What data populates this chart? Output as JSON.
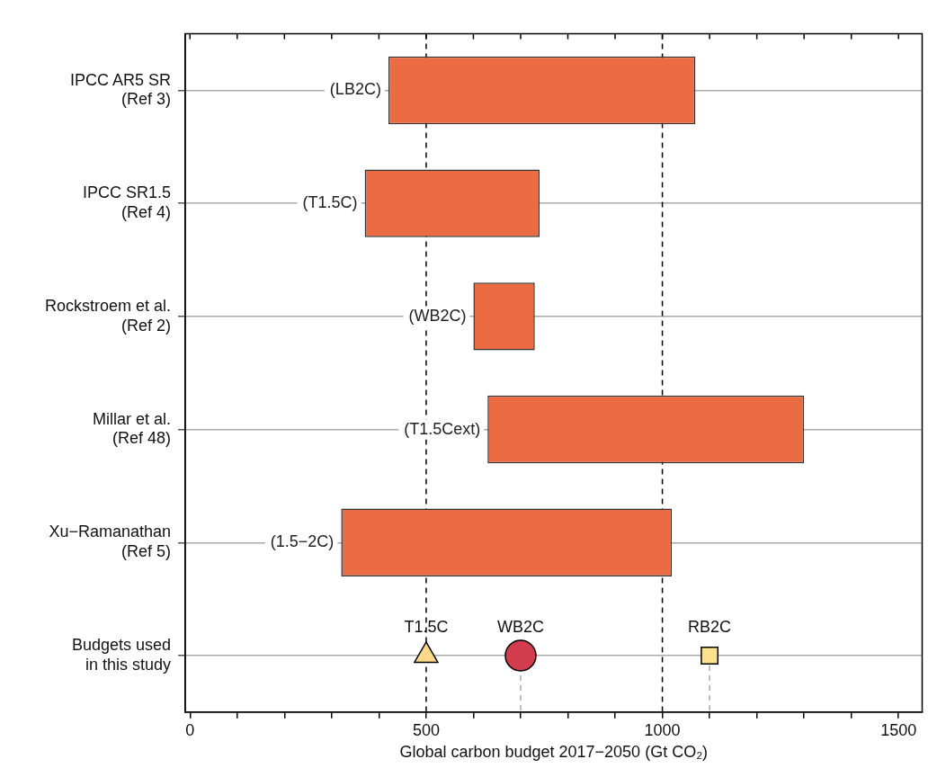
{
  "chart_data": {
    "type": "bar",
    "orientation": "horizontal",
    "xlabel": "Global carbon budget 2017−2050 (Gt CO₂)",
    "categories": [
      "IPCC AR5 SR\n(Ref 3)",
      "IPCC SR1.5\n(Ref 4)",
      "Rockstroem et al.\n(Ref 2)",
      "Millar et al.\n(Ref 48)",
      "Xu−Ramanathan\n(Ref 5)",
      "Budgets used\nin this study"
    ],
    "series": [
      {
        "color": "#eb6b42",
        "values": [
          650,
          370,
          130,
          670,
          700,
          null
        ],
        "base": [
          420,
          370,
          600,
          630,
          320,
          null
        ]
      },
      {
        "type": "scatter",
        "name": "T1.5C",
        "color": "#fbd98a",
        "marker": "triangle",
        "values": [
          null,
          null,
          null,
          null,
          null,
          500
        ]
      },
      {
        "type": "scatter",
        "name": "WB2C",
        "color": "#d23c4c",
        "marker": "circle",
        "values": [
          null,
          null,
          null,
          null,
          null,
          700
        ]
      },
      {
        "type": "scatter",
        "name": "RB2C",
        "color": "#fde18c",
        "marker": "square",
        "values": [
          null,
          null,
          null,
          null,
          null,
          1100
        ]
      }
    ],
    "annotations": [
      {
        "text": "(LB2C)",
        "x": 420,
        "y": "IPCC AR5 SR\n(Ref 3)"
      },
      {
        "text": "(T1.5C)",
        "x": 370,
        "y": "IPCC SR1.5\n(Ref 4)"
      },
      {
        "text": "(WB2C)",
        "x": 600,
        "y": "Rockstroem et al.\n(Ref 2)"
      },
      {
        "text": "(T1.5Cext)",
        "x": 630,
        "y": "Millar et al.\n(Ref 48)"
      },
      {
        "text": "(1.5−2C)",
        "x": 320,
        "y": "Xu−Ramanathan\n(Ref 5)"
      }
    ],
    "ref_lines": [
      {
        "axis": "x",
        "value": 500,
        "color": "#000000",
        "line_style": "dashed"
      },
      {
        "axis": "x",
        "value": 1000,
        "color": "#000000",
        "line_style": "dashed"
      }
    ],
    "xlim": [
      -10,
      1550
    ],
    "xticks": [
      0,
      {
        "value": 100,
        "label": null
      },
      {
        "value": 200,
        "label": null
      },
      {
        "value": 300,
        "label": null
      },
      {
        "value": 400,
        "label": null
      },
      500,
      {
        "value": 600,
        "label": null
      },
      {
        "value": 700,
        "label": null
      },
      {
        "value": 800,
        "label": null
      },
      {
        "value": 900,
        "label": null
      },
      1000,
      {
        "value": 1100,
        "label": null
      },
      {
        "value": 1200,
        "label": null
      },
      {
        "value": 1300,
        "label": null
      },
      {
        "value": 1400,
        "label": null
      },
      1500
    ],
    "grid": "y",
    "legend": false
  }
}
